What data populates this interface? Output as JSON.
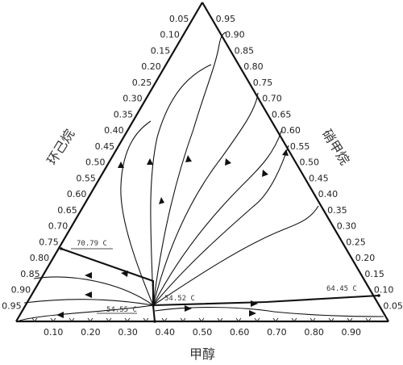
{
  "diagram": {
    "type": "ternary residue curve map",
    "components": {
      "left": "环己烷",
      "right": "硝甲烷",
      "bottom": "甲醇"
    },
    "left_ticks": [
      "0.05",
      "0.10",
      "0.15",
      "0.20",
      "0.25",
      "0.30",
      "0.35",
      "0.40",
      "0.45",
      "0.50",
      "0.55",
      "0.60",
      "0.65",
      "0.70",
      "0.75",
      "0.80",
      "0.85",
      "0.90",
      "0.95"
    ],
    "right_ticks": [
      "0.95",
      "0.90",
      "0.85",
      "0.80",
      "0.75",
      "0.70",
      "0.65",
      "0.60",
      "0.55",
      "0.50",
      "0.45",
      "0.40",
      "0.35",
      "0.30",
      "0.25",
      "0.20",
      "0.15",
      "0.10",
      "0.05"
    ],
    "bottom_ticks": [
      "0.10",
      "0.20",
      "0.30",
      "0.40",
      "0.50",
      "0.60",
      "0.70",
      "0.80",
      "0.90"
    ],
    "azeotropes": [
      {
        "label": "70.79 C"
      },
      {
        "label": "54.52 C"
      },
      {
        "label": "54.55 C"
      },
      {
        "label": "64.45 C"
      }
    ]
  }
}
